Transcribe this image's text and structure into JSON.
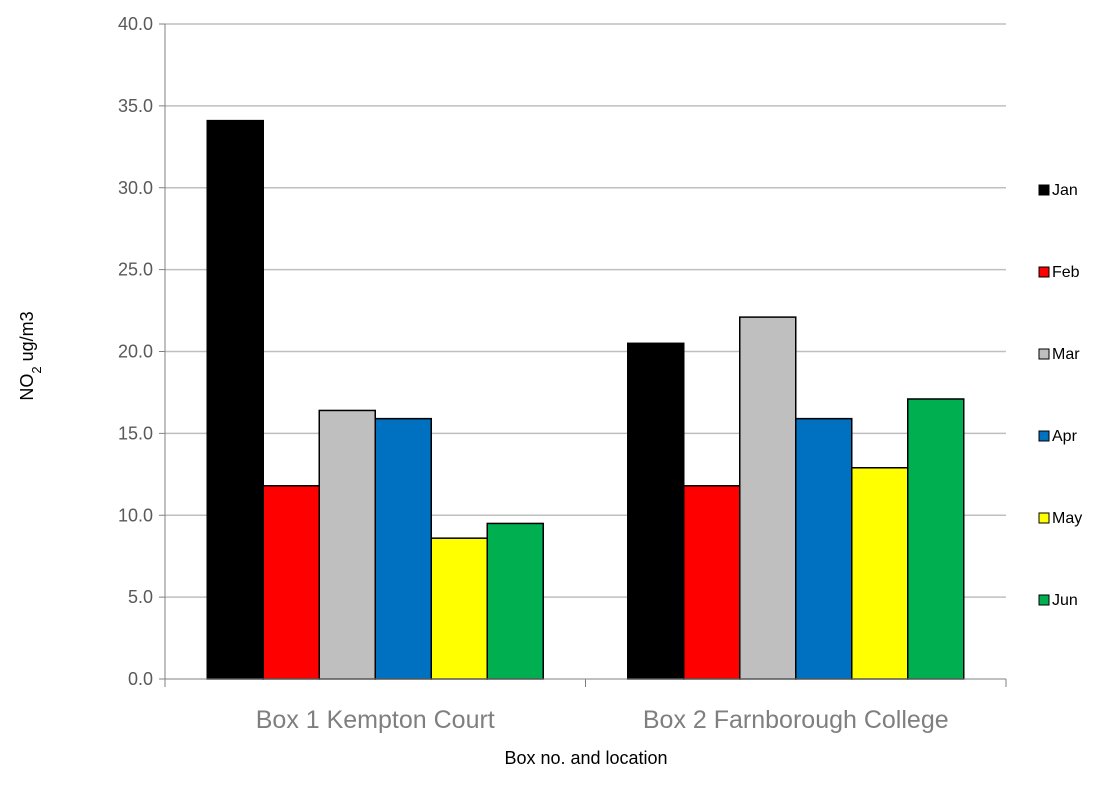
{
  "chart_data": {
    "type": "bar",
    "categories": [
      "Box 1 Kempton Court",
      "Box 2 Farnborough College"
    ],
    "series": [
      {
        "name": "Jan",
        "color": "#000000",
        "values": [
          34.1,
          20.5
        ]
      },
      {
        "name": "Feb",
        "color": "#ff0000",
        "values": [
          11.8,
          11.8
        ]
      },
      {
        "name": "Mar",
        "color": "#bfbfbf",
        "values": [
          16.4,
          22.1
        ]
      },
      {
        "name": "Apr",
        "color": "#0070c0",
        "values": [
          15.9,
          15.9
        ]
      },
      {
        "name": "May",
        "color": "#ffff00",
        "values": [
          8.6,
          12.9
        ]
      },
      {
        "name": "Jun",
        "color": "#00b050",
        "values": [
          9.5,
          17.1
        ]
      }
    ],
    "xlabel": "Box no. and location",
    "ylabel": {
      "prefix": "NO",
      "subscript": "2",
      "suffix": " ug/m3"
    },
    "ylim": [
      0,
      40
    ],
    "yticks": [
      "0.0",
      "5.0",
      "10.0",
      "15.0",
      "20.0",
      "25.0",
      "30.0",
      "35.0",
      "40.0"
    ],
    "grid": true,
    "legend_position": "right"
  }
}
